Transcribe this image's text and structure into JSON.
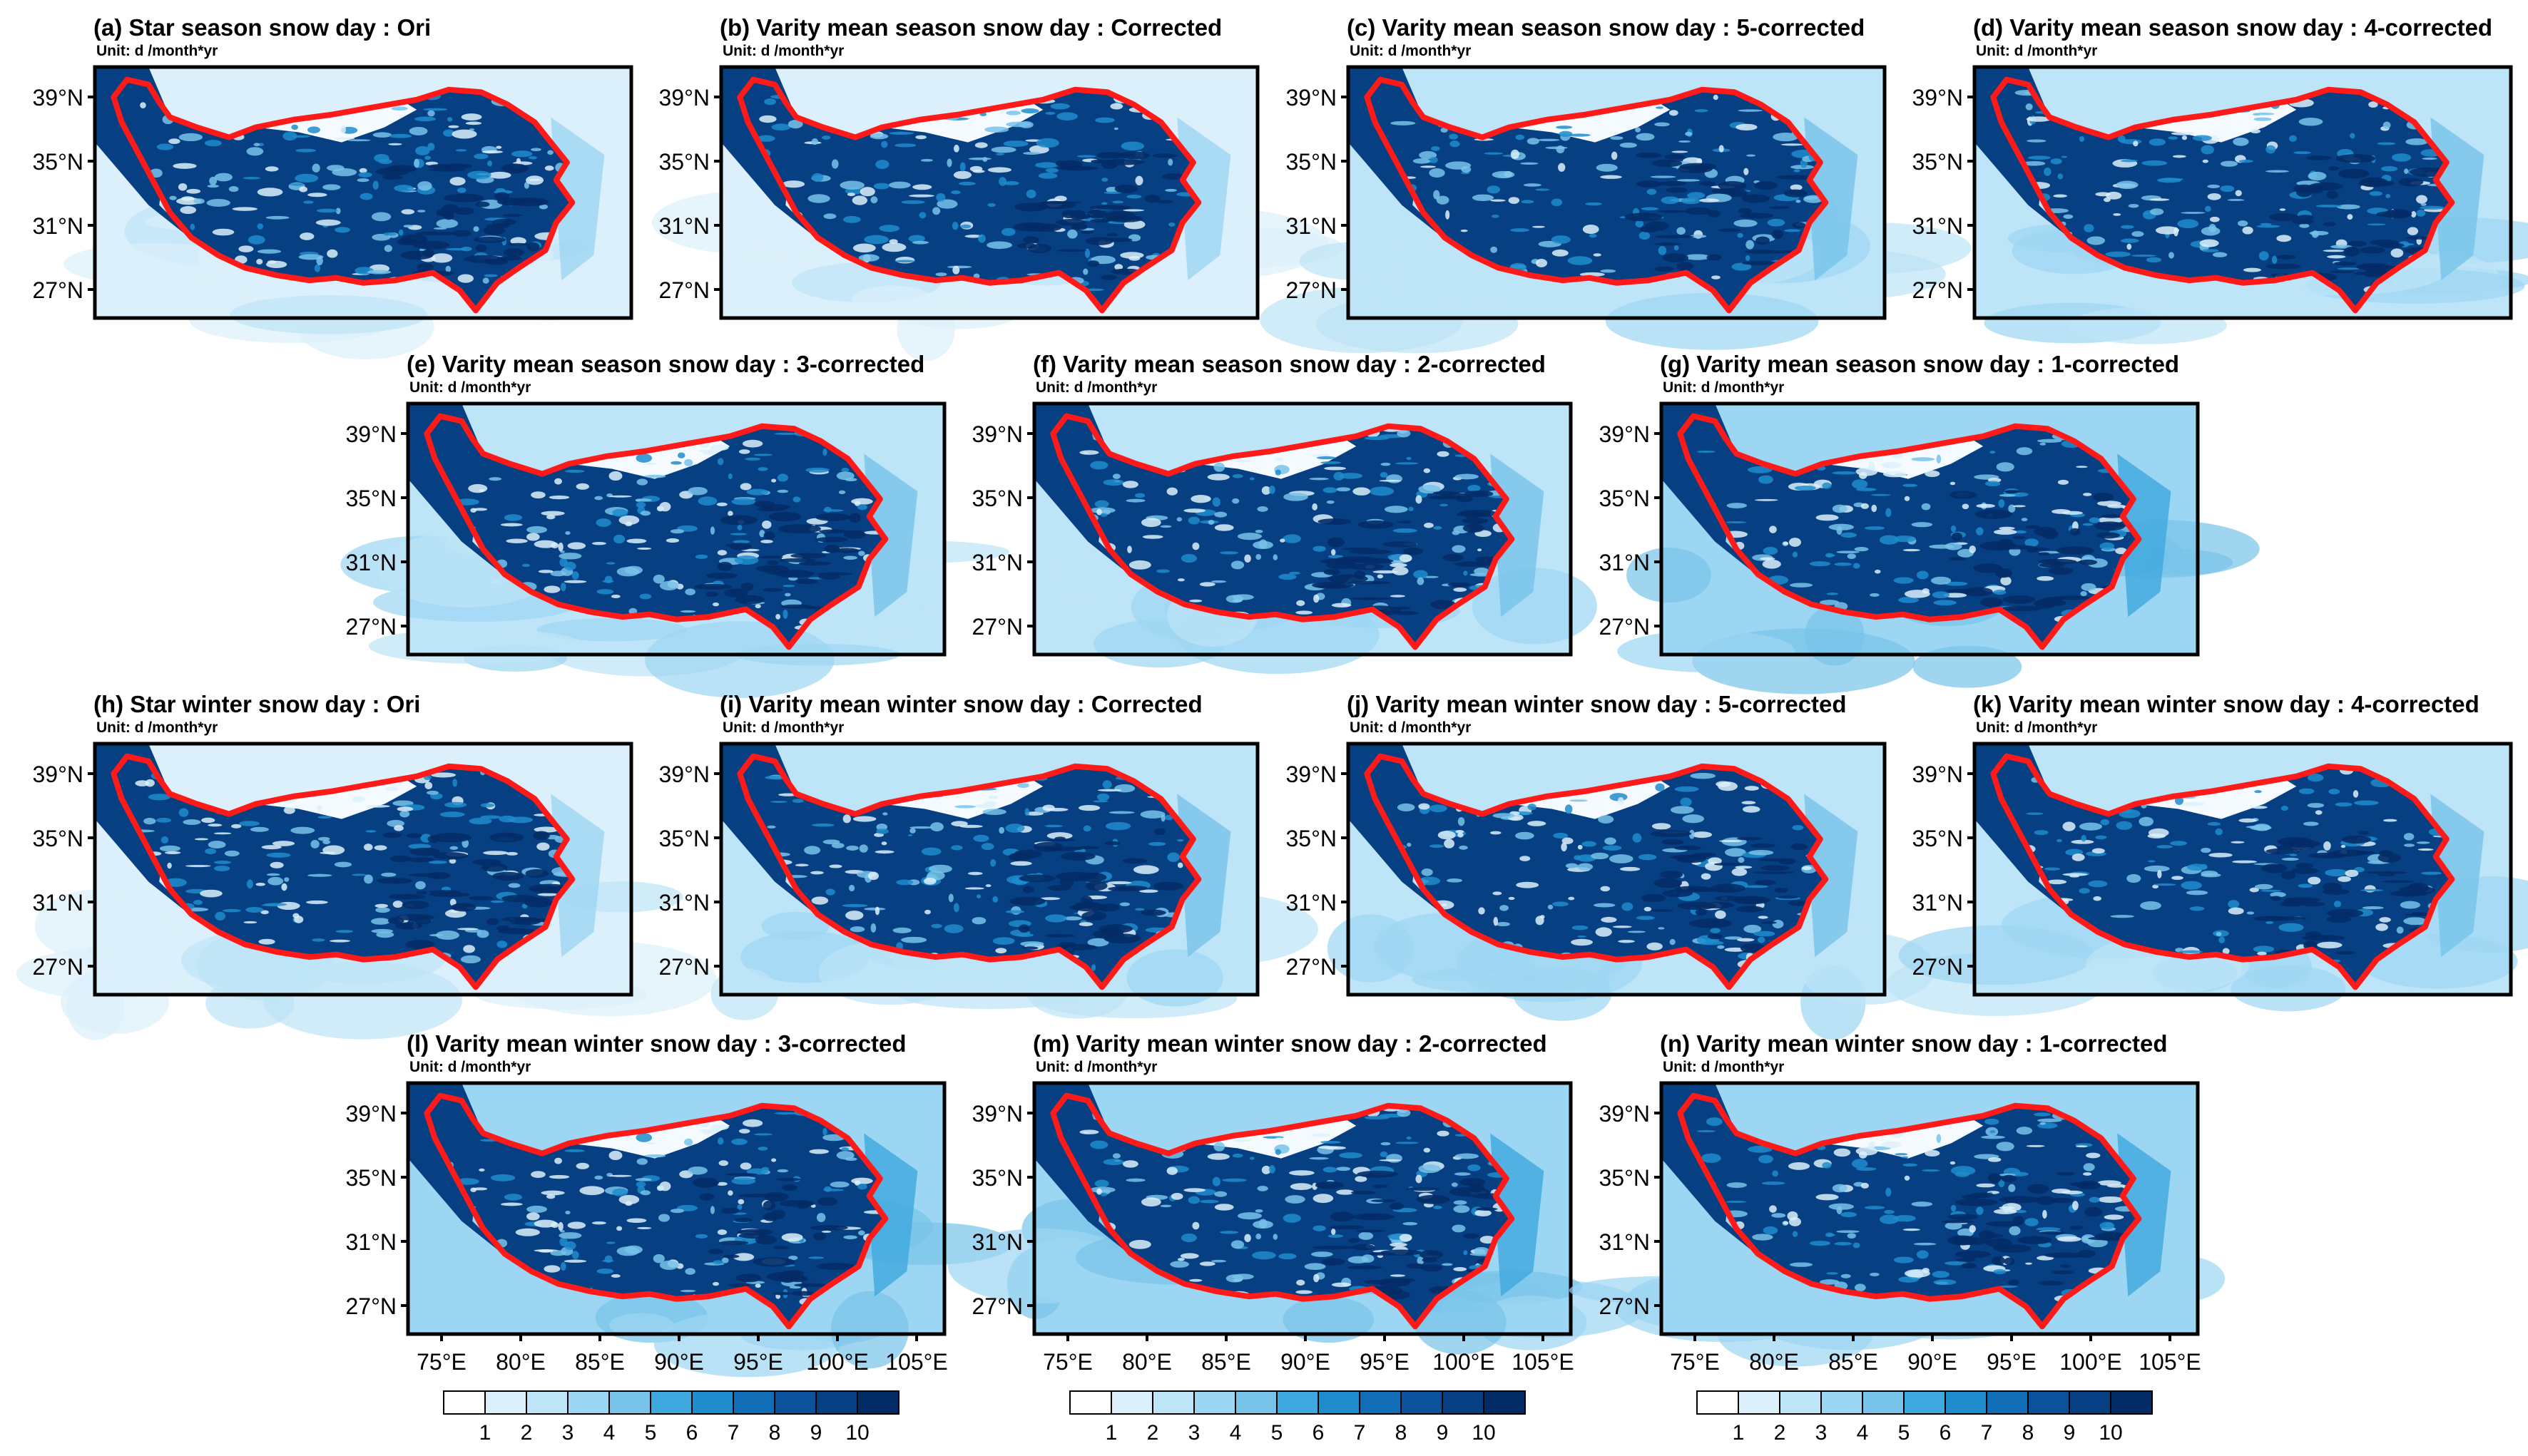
{
  "figure": {
    "unit_label": "Unit: d /month*yr",
    "lat_labels": [
      "39°N",
      "35°N",
      "31°N",
      "27°N"
    ],
    "lon_labels": [
      "75°E",
      "80°E",
      "85°E",
      "90°E",
      "95°E",
      "100°E",
      "105°E"
    ],
    "colorbar_labels": [
      "1",
      "2",
      "3",
      "4",
      "5",
      "6",
      "7",
      "8",
      "9",
      "10"
    ],
    "colorbar_colors": [
      "#ffffff",
      "#dcf0fb",
      "#bee4f7",
      "#9dd6f2",
      "#77c3ea",
      "#3fa8de",
      "#1f8ccd",
      "#116db5",
      "#0a539c",
      "#063f82",
      "#032c66"
    ],
    "boundary_color": "#ff1a1a"
  },
  "panels": [
    {
      "title": "(a) Star season snow day : Ori"
    },
    {
      "title": "(b) Varity mean season snow day : Corrected"
    },
    {
      "title": "(c) Varity mean season snow day : 5-corrected"
    },
    {
      "title": "(d) Varity mean season snow day : 4-corrected"
    },
    {
      "title": "(e) Varity mean season snow day : 3-corrected"
    },
    {
      "title": "(f) Varity mean season snow day : 2-corrected"
    },
    {
      "title": "(g) Varity mean season snow day : 1-corrected"
    },
    {
      "title": "(h) Star winter snow day : Ori"
    },
    {
      "title": "(i) Varity mean winter snow day : Corrected"
    },
    {
      "title": "(j) Varity mean winter snow day : 5-corrected"
    },
    {
      "title": "(k) Varity mean winter snow day : 4-corrected"
    },
    {
      "title": "(l) Varity mean winter snow day : 3-corrected"
    },
    {
      "title": "(m) Varity mean winter snow day : 2-corrected"
    },
    {
      "title": "(n) Varity mean winter snow day : 1-corrected"
    }
  ]
}
